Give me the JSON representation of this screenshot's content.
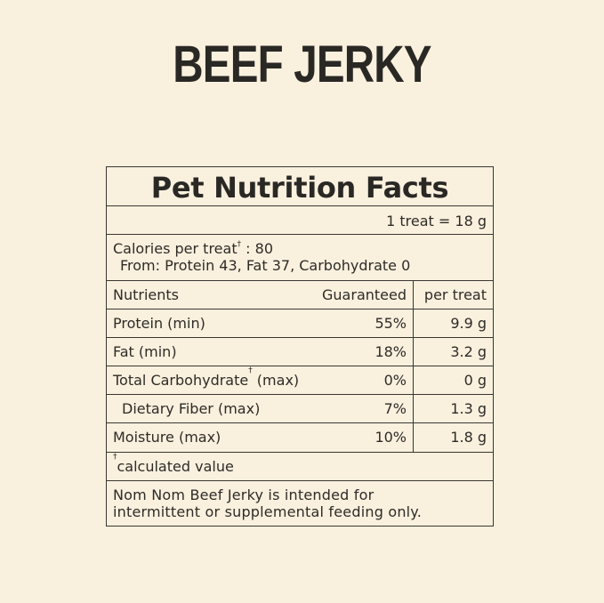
{
  "title": "BEEF JERKY",
  "panel": {
    "heading": "Pet Nutrition Facts",
    "serving": "1 treat = 18 g",
    "calories_label": "Calories per treat",
    "calories_mark": "†",
    "calories_value": " : 80",
    "calories_from": "From: Protein 43, Fat 37, Carbohydrate 0",
    "headers": {
      "nutrients": "Nutrients",
      "guaranteed": "Guaranteed",
      "per_treat": "per treat"
    },
    "rows": [
      {
        "name": "Protein (min)",
        "mark": "",
        "suffix": "",
        "guaranteed": "55%",
        "per_treat": "9.9 g"
      },
      {
        "name": "Fat (min)",
        "mark": "",
        "suffix": "",
        "guaranteed": "18%",
        "per_treat": "3.2 g"
      },
      {
        "name": "Total Carbohydrate",
        "mark": "†",
        "suffix": " (max)",
        "guaranteed": "0%",
        "per_treat": "0 g"
      },
      {
        "name": "Dietary Fiber (max)",
        "mark": "",
        "suffix": "",
        "guaranteed": "7%",
        "per_treat": "1.3 g"
      },
      {
        "name": "Moisture (max)",
        "mark": "",
        "suffix": "",
        "guaranteed": "10%",
        "per_treat": "1.8 g"
      }
    ],
    "footnote_mark": "†",
    "footnote": "calculated value",
    "note_line1": "Nom Nom Beef Jerky is intended for",
    "note_line2": "intermittent or supplemental feeding only."
  }
}
